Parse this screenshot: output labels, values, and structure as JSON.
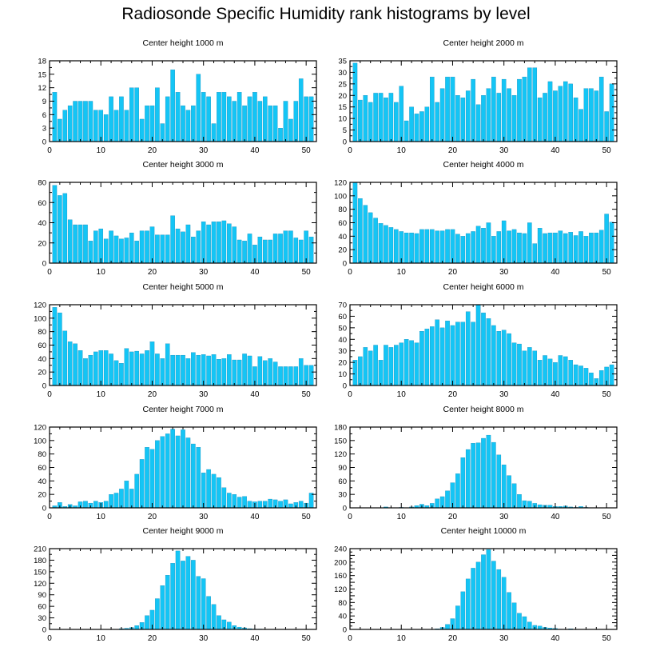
{
  "title": "Radiosonde Specific Humidity rank histograms by level",
  "colors": {
    "bar": "#14c5f5",
    "bar_edge": "#0a7fb0",
    "axis": "#000000"
  },
  "chart_data": [
    {
      "type": "bar",
      "title": "Center height 1000 m",
      "xlim": [
        0,
        52
      ],
      "ylim": [
        0,
        18
      ],
      "xticks": [
        0,
        10,
        20,
        30,
        40,
        50
      ],
      "yticks": [
        0,
        3,
        6,
        9,
        12,
        15,
        18
      ],
      "values": [
        11,
        5,
        7,
        8,
        9,
        9,
        9,
        9,
        7,
        7,
        6,
        10,
        7,
        10,
        7,
        12,
        12,
        5,
        8,
        8,
        12,
        4,
        10,
        16,
        11,
        8,
        7,
        8,
        15,
        11,
        10,
        4,
        11,
        11,
        10,
        9,
        11,
        8,
        10,
        11,
        9,
        10,
        8,
        8,
        3,
        9,
        5,
        9,
        14,
        10,
        10
      ]
    },
    {
      "type": "bar",
      "title": "Center height 2000 m",
      "xlim": [
        0,
        52
      ],
      "ylim": [
        0,
        35
      ],
      "xticks": [
        0,
        10,
        20,
        30,
        40,
        50
      ],
      "yticks": [
        0,
        5,
        10,
        15,
        20,
        25,
        30,
        35
      ],
      "values": [
        34,
        18,
        20,
        17,
        21,
        21,
        19,
        21,
        17,
        24,
        9,
        15,
        12,
        13,
        15,
        28,
        17,
        23,
        28,
        28,
        20,
        19,
        22,
        27,
        16,
        20,
        23,
        28,
        21,
        27,
        23,
        20,
        27,
        28,
        32,
        32,
        19,
        21,
        26,
        22,
        24,
        26,
        25,
        19,
        14,
        23,
        23,
        22,
        28,
        13,
        25
      ]
    },
    {
      "type": "bar",
      "title": "Center height 3000 m",
      "xlim": [
        0,
        52
      ],
      "ylim": [
        0,
        80
      ],
      "xticks": [
        0,
        10,
        20,
        30,
        40,
        50
      ],
      "yticks": [
        0,
        20,
        40,
        60,
        80
      ],
      "values": [
        77,
        67,
        69,
        43,
        38,
        38,
        38,
        22,
        32,
        34,
        24,
        32,
        27,
        24,
        25,
        30,
        22,
        32,
        32,
        36,
        28,
        28,
        28,
        47,
        34,
        31,
        38,
        26,
        32,
        41,
        38,
        41,
        41,
        42,
        39,
        36,
        23,
        22,
        29,
        18,
        26,
        23,
        23,
        29,
        29,
        32,
        32,
        25,
        23,
        32,
        26
      ]
    },
    {
      "type": "bar",
      "title": "Center height 4000 m",
      "xlim": [
        0,
        52
      ],
      "ylim": [
        0,
        120
      ],
      "xticks": [
        0,
        10,
        20,
        30,
        40,
        50
      ],
      "yticks": [
        0,
        20,
        40,
        60,
        80,
        100,
        120
      ],
      "values": [
        120,
        96,
        86,
        75,
        67,
        59,
        56,
        53,
        50,
        47,
        45,
        45,
        44,
        50,
        50,
        50,
        48,
        48,
        50,
        50,
        43,
        40,
        44,
        47,
        55,
        52,
        60,
        40,
        47,
        63,
        48,
        50,
        45,
        44,
        60,
        29,
        52,
        44,
        45,
        45,
        48,
        44,
        46,
        41,
        47,
        40,
        45,
        45,
        49,
        73,
        61
      ]
    },
    {
      "type": "bar",
      "title": "Center height 5000 m",
      "xlim": [
        0,
        52
      ],
      "ylim": [
        0,
        120
      ],
      "xticks": [
        0,
        10,
        20,
        30,
        40,
        50
      ],
      "yticks": [
        0,
        20,
        40,
        60,
        80,
        100,
        120
      ],
      "values": [
        116,
        108,
        81,
        65,
        62,
        52,
        40,
        45,
        50,
        52,
        52,
        47,
        37,
        33,
        55,
        50,
        51,
        47,
        52,
        65,
        47,
        40,
        62,
        45,
        45,
        45,
        40,
        49,
        45,
        46,
        44,
        46,
        39,
        40,
        46,
        38,
        38,
        47,
        44,
        28,
        43,
        37,
        40,
        35,
        28,
        28,
        28,
        28,
        40,
        30,
        30
      ]
    },
    {
      "type": "bar",
      "title": "Center height 6000 m",
      "xlim": [
        0,
        52
      ],
      "ylim": [
        0,
        70
      ],
      "xticks": [
        0,
        10,
        20,
        30,
        40,
        50
      ],
      "yticks": [
        0,
        10,
        20,
        30,
        40,
        50,
        60,
        70
      ],
      "values": [
        22,
        25,
        33,
        30,
        35,
        22,
        35,
        33,
        35,
        37,
        40,
        39,
        37,
        47,
        49,
        51,
        57,
        50,
        56,
        52,
        55,
        55,
        64,
        55,
        70,
        63,
        58,
        52,
        47,
        48,
        45,
        37,
        36,
        30,
        33,
        30,
        22,
        26,
        23,
        20,
        26,
        25,
        22,
        18,
        17,
        15,
        11,
        6,
        13,
        16,
        18
      ]
    },
    {
      "type": "bar",
      "title": "Center height 7000 m",
      "xlim": [
        0,
        52
      ],
      "ylim": [
        0,
        120
      ],
      "xticks": [
        0,
        10,
        20,
        30,
        40,
        50
      ],
      "yticks": [
        0,
        20,
        40,
        60,
        80,
        100,
        120
      ],
      "values": [
        3,
        8,
        2,
        5,
        3,
        9,
        10,
        7,
        10,
        8,
        10,
        20,
        22,
        28,
        40,
        28,
        50,
        72,
        90,
        87,
        100,
        106,
        110,
        117,
        107,
        116,
        104,
        95,
        90,
        52,
        57,
        50,
        45,
        30,
        22,
        20,
        16,
        17,
        10,
        9,
        10,
        10,
        13,
        12,
        10,
        12,
        6,
        8,
        10,
        7,
        22
      ]
    },
    {
      "type": "bar",
      "title": "Center height 8000 m",
      "xlim": [
        0,
        52
      ],
      "ylim": [
        0,
        180
      ],
      "xticks": [
        0,
        10,
        20,
        30,
        40,
        50
      ],
      "yticks": [
        0,
        30,
        60,
        90,
        120,
        150,
        180
      ],
      "values": [
        0,
        0,
        0,
        0,
        0,
        0,
        2,
        0,
        0,
        1,
        0,
        2,
        5,
        8,
        5,
        10,
        20,
        25,
        38,
        56,
        76,
        112,
        130,
        144,
        145,
        155,
        162,
        146,
        118,
        96,
        72,
        54,
        30,
        16,
        15,
        10,
        7,
        6,
        6,
        3,
        3,
        4,
        2,
        1,
        3,
        1,
        0,
        0,
        0,
        0,
        0
      ]
    },
    {
      "type": "bar",
      "title": "Center height 9000 m",
      "xlim": [
        0,
        52
      ],
      "ylim": [
        0,
        210
      ],
      "xticks": [
        0,
        10,
        20,
        30,
        40,
        50
      ],
      "yticks": [
        0,
        30,
        60,
        90,
        120,
        150,
        180,
        210
      ],
      "values": [
        0,
        0,
        0,
        0,
        0,
        0,
        0,
        0,
        0,
        0,
        0,
        0,
        0,
        2,
        3,
        5,
        10,
        18,
        36,
        50,
        80,
        114,
        141,
        172,
        204,
        178,
        190,
        180,
        138,
        132,
        86,
        65,
        36,
        25,
        19,
        10,
        6,
        4,
        2,
        1,
        1,
        0,
        0,
        0,
        0,
        0,
        0,
        0,
        0,
        0,
        0
      ]
    },
    {
      "type": "bar",
      "title": "Center height 10000 m",
      "xlim": [
        0,
        52
      ],
      "ylim": [
        0,
        240
      ],
      "xticks": [
        0,
        10,
        20,
        30,
        40,
        50
      ],
      "yticks": [
        0,
        20,
        40,
        60,
        80,
        100,
        120,
        140,
        160,
        180,
        200,
        220,
        240
      ],
      "ytick_labels": [
        0,
        40,
        80,
        120,
        160,
        200,
        240
      ],
      "values": [
        0,
        0,
        0,
        0,
        0,
        0,
        0,
        0,
        0,
        0,
        0,
        0,
        0,
        0,
        0,
        0,
        2,
        6,
        15,
        32,
        70,
        112,
        150,
        182,
        200,
        222,
        237,
        203,
        178,
        155,
        110,
        79,
        48,
        38,
        22,
        12,
        10,
        6,
        4,
        3,
        1,
        0,
        2,
        0,
        0,
        0,
        0,
        0,
        0,
        0,
        0
      ]
    }
  ]
}
